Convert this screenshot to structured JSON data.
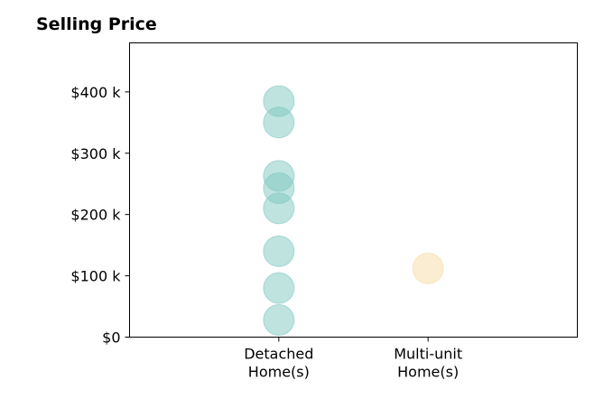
{
  "chart_data": {
    "type": "scatter",
    "title": "Selling Price",
    "xlabel": "",
    "ylabel": "",
    "categories": [
      "Detached\nHome(s)",
      "Multi-unit\nHome(s)"
    ],
    "x_range": [
      0,
      3
    ],
    "ylim": [
      0,
      480000
    ],
    "y_ticks": [
      {
        "value": 0,
        "label": "$0"
      },
      {
        "value": 100000,
        "label": "$100 k"
      },
      {
        "value": 200000,
        "label": "$200 k"
      },
      {
        "value": 300000,
        "label": "$300 k"
      },
      {
        "value": 400000,
        "label": "$400 k"
      }
    ],
    "grid": false,
    "legend": "none",
    "series": [
      {
        "category_index": 0,
        "color": "#7fc8bf",
        "values": [
          385000,
          350000,
          263000,
          243000,
          210000,
          140000,
          80000,
          28000
        ]
      },
      {
        "category_index": 1,
        "color": "#f5dca6",
        "values": [
          112000
        ]
      }
    ]
  }
}
